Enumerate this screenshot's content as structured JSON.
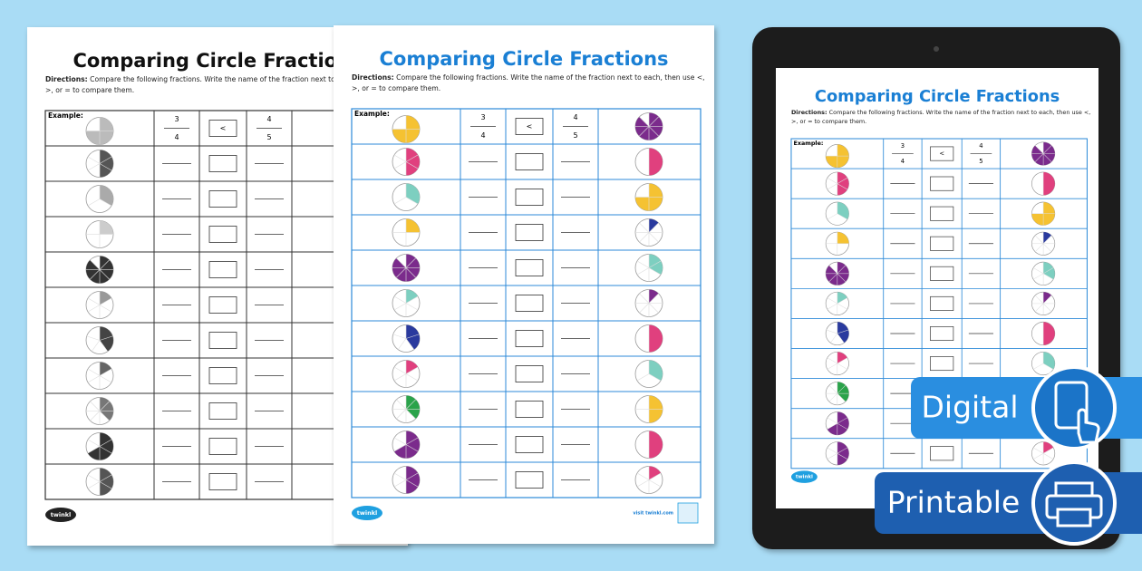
{
  "worksheets": [
    {
      "title": "Comparing Circle Fractions",
      "directions_label": "Directions:",
      "directions": "Compare the following fractions. Write the name of the fraction next to each, then use <, >, or = to compare them.",
      "example_label": "Example:",
      "example": {
        "left": {
          "numerator": 3,
          "denominator": 4
        },
        "symbol": "<",
        "right": {
          "numerator": 4,
          "denominator": 5
        }
      },
      "logo": "twinkl"
    },
    {
      "title": "Comparing Circle Fractions",
      "directions_label": "Directions:",
      "directions": "Compare the following fractions. Write the name of the fraction next to each, then use <, >, or = to compare them.",
      "example_label": "Example:",
      "example": {
        "left": {
          "numerator": 3,
          "denominator": 4
        },
        "symbol": "<",
        "right": {
          "numerator": 4,
          "denominator": 5
        }
      },
      "logo": "twinkl",
      "footer": "visit twinkl.com"
    },
    {
      "title": "Comparing Circle Fractions",
      "directions_label": "Directions:",
      "directions": "Compare the following fractions. Write the name of the fraction next to each, then use <, >, or = to compare them.",
      "example_label": "Example:",
      "example": {
        "left": {
          "numerator": 3,
          "denominator": 4
        },
        "symbol": "<",
        "right": {
          "numerator": 4,
          "denominator": 5
        }
      },
      "logo": "twinkl"
    }
  ],
  "badges": {
    "digital": "Digital",
    "printable": "Printable"
  }
}
